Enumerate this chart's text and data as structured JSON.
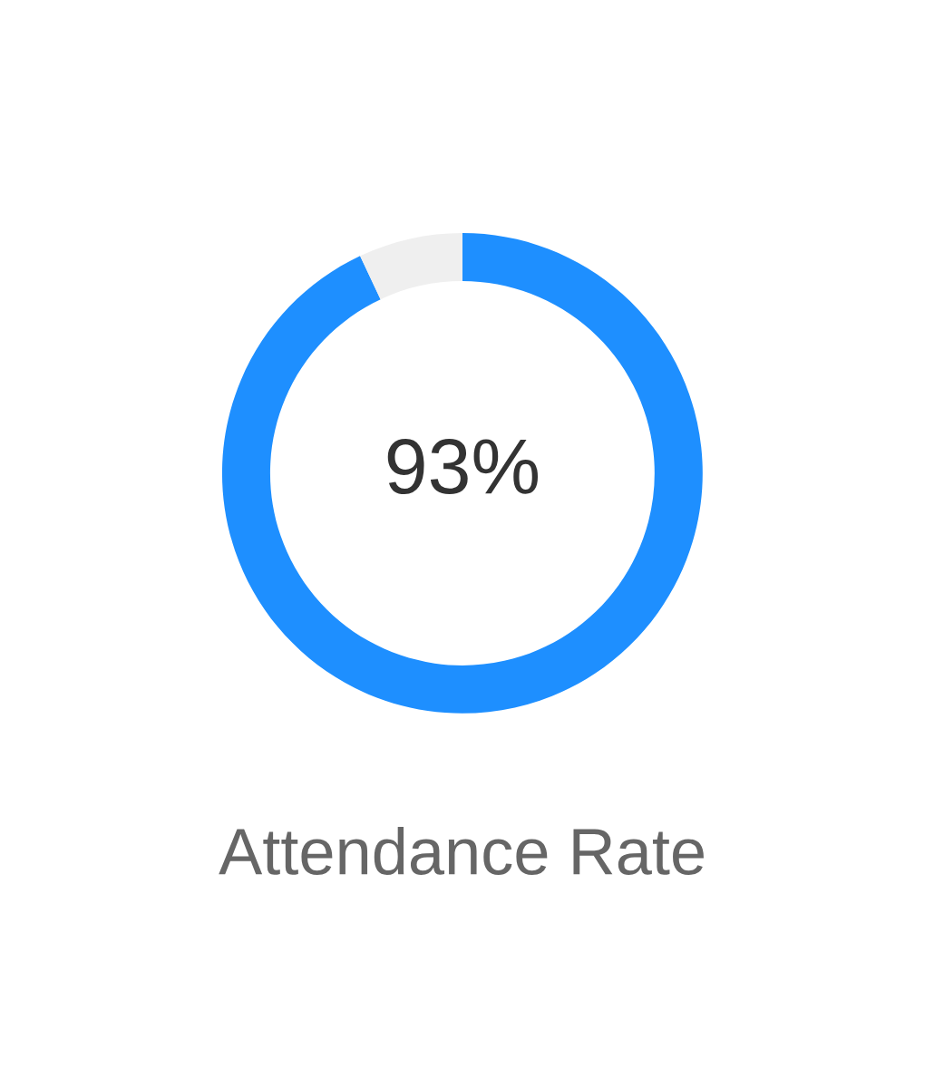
{
  "chart_data": {
    "type": "donut",
    "title": "Attendance Rate",
    "categories": [
      null,
      null
    ],
    "values": [
      93,
      7
    ],
    "colors": [
      "#1e8fff",
      "#efefef"
    ],
    "value_labels": [
      "93%",
      null
    ]
  }
}
